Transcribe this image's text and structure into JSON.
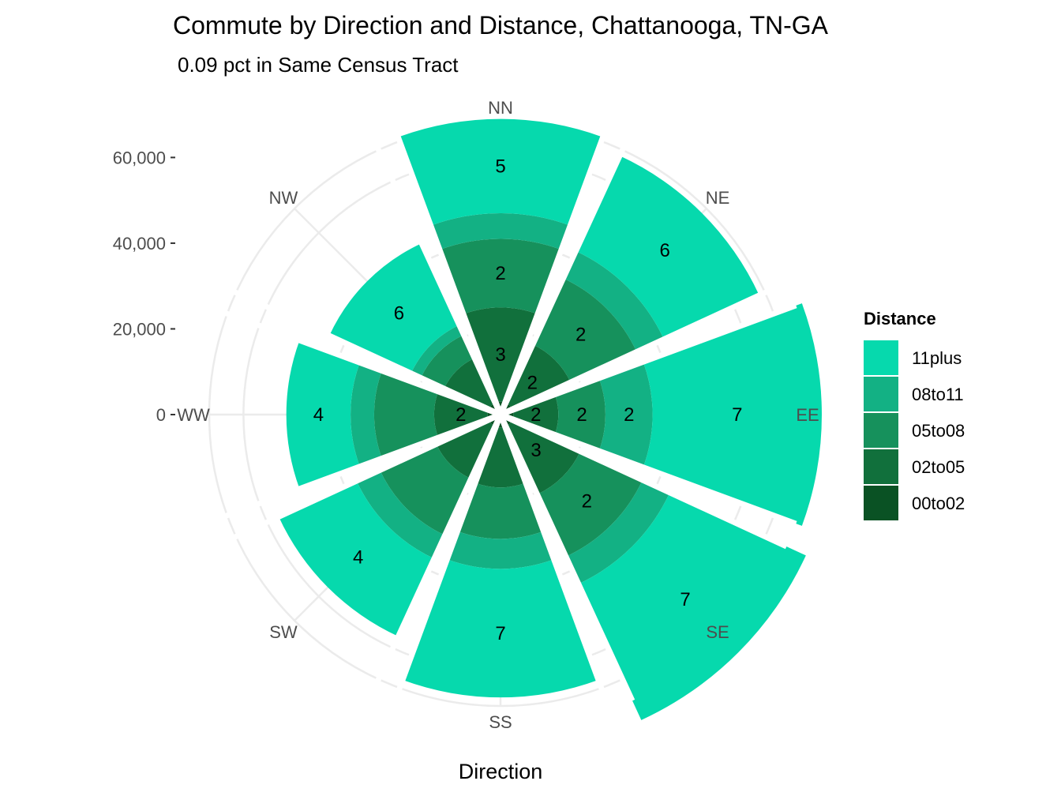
{
  "chart_data": {
    "type": "stacked-polar-bar",
    "title": "Commute by Direction and Distance, Chattanooga, TN-GA",
    "subtitle": "0.09 pct in Same Census Tract",
    "xlabel": "Direction",
    "ylabel": "",
    "directions": [
      "NN",
      "NE",
      "EE",
      "SE",
      "SS",
      "SW",
      "WW",
      "NW"
    ],
    "y_ticks": [
      0,
      20000,
      40000,
      60000
    ],
    "y_tick_labels": [
      "0",
      "20,000",
      "40,000",
      "60,000"
    ],
    "ylim": [
      0,
      68000
    ],
    "legend": {
      "title": "Distance",
      "position": "right",
      "entries": [
        "11plus",
        "08to11",
        "05to08",
        "02to05",
        "00to02"
      ]
    },
    "series": [
      {
        "name": "00to02",
        "color": "#0a5224",
        "values": [
          3000,
          3000,
          3000,
          3000,
          3000,
          3000,
          3000,
          3000
        ],
        "labels": [
          "",
          "",
          "",
          "",
          "",
          "",
          "",
          ""
        ]
      },
      {
        "name": "02to05",
        "color": "#11703c",
        "values": [
          22000,
          15000,
          10500,
          17500,
          14000,
          13500,
          12500,
          11500
        ],
        "labels": [
          "3",
          "2",
          "2",
          "3",
          "",
          "",
          "2",
          ""
        ]
      },
      {
        "name": "05to08",
        "color": "#16915c",
        "values": [
          16000,
          17000,
          11000,
          16000,
          12000,
          14500,
          14000,
          6000
        ],
        "labels": [
          "2",
          "2",
          "2",
          "2",
          "",
          "",
          "",
          ""
        ]
      },
      {
        "name": "08to11",
        "color": "#13b184",
        "values": [
          6000,
          7000,
          11000,
          7000,
          7000,
          6000,
          5500,
          2500
        ],
        "labels": [
          "",
          "",
          "2",
          "",
          "",
          "",
          "",
          ""
        ]
      },
      {
        "name": "11plus",
        "color": "#06d9ad",
        "values": [
          22000,
          24500,
          39500,
          35000,
          30000,
          20000,
          15000,
          21000
        ],
        "labels": [
          "5",
          "6",
          "7",
          "7",
          "7",
          "4",
          "4",
          "6"
        ]
      }
    ]
  },
  "styles": {
    "grid_color": "#ebebeb",
    "axis_tick_color": "#333333",
    "gap_color": "#ffffff"
  }
}
